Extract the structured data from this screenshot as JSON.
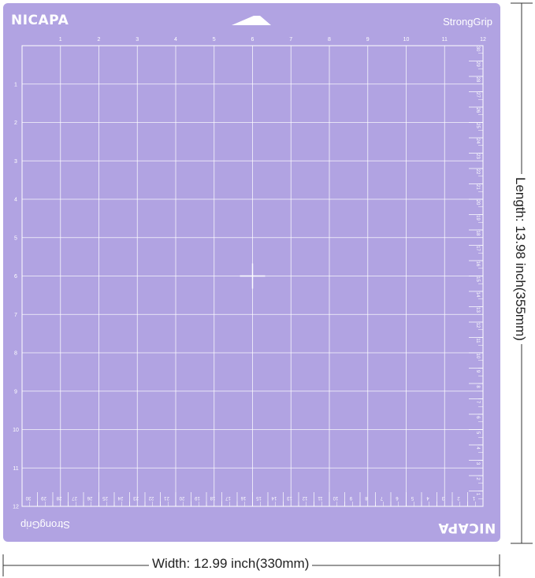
{
  "mat": {
    "brand": "NICAPA",
    "grip": "StrongGrip",
    "color": "#b1a3e2",
    "line_color": "#ffffff",
    "grid_inches": 12,
    "top_ruler": [
      "1",
      "2",
      "3",
      "4",
      "5",
      "6",
      "7",
      "8",
      "9",
      "10",
      "11",
      "12"
    ],
    "left_ruler": [
      "1",
      "2",
      "3",
      "4",
      "5",
      "6",
      "7",
      "8",
      "9",
      "10",
      "11",
      "12"
    ],
    "right_ruler_cm": [
      "30",
      "29",
      "28",
      "27",
      "26",
      "25",
      "24",
      "23",
      "22",
      "21",
      "20",
      "19",
      "18",
      "17",
      "16",
      "15",
      "14",
      "13",
      "12",
      "11",
      "10",
      "9",
      "8",
      "7",
      "6",
      "5",
      "4",
      "3",
      "2",
      "1"
    ],
    "bottom_ruler_cm": [
      "30",
      "29",
      "28",
      "27",
      "26",
      "25",
      "24",
      "23",
      "22",
      "21",
      "20",
      "19",
      "18",
      "17",
      "16",
      "15",
      "14",
      "13",
      "12",
      "11",
      "10",
      "9",
      "8",
      "7",
      "6",
      "5",
      "4",
      "3",
      "2",
      "1"
    ]
  },
  "dimensions": {
    "width_label": "Width: 12.99 inch(330mm)",
    "length_label": "Length: 13.98 inch(355mm)"
  }
}
